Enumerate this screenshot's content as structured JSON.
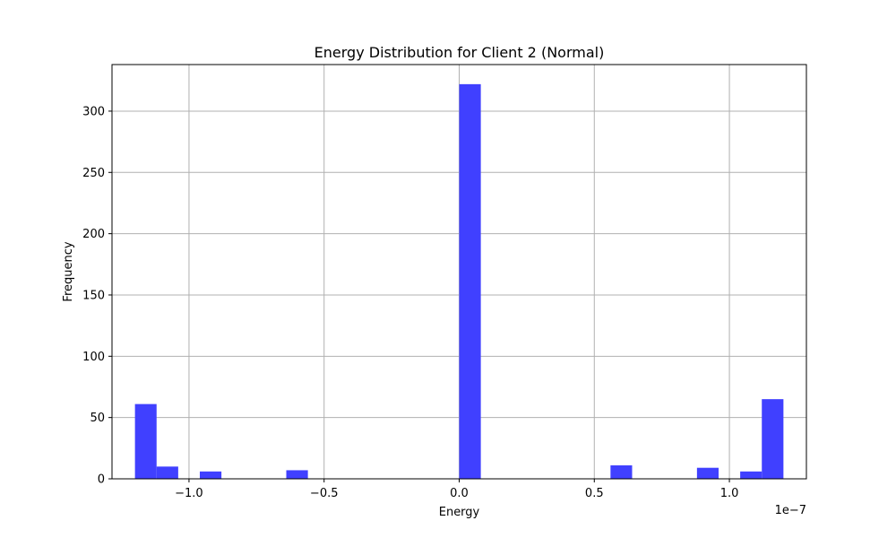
{
  "chart_data": {
    "type": "bar",
    "title": "Energy Distribution for Client 2 (Normal)",
    "xlabel": "Energy",
    "ylabel": "Frequency",
    "x_offset_label": "1e−7",
    "x_scale_factor": 1e-07,
    "xlim": [
      -1.285e-07,
      1.285e-07
    ],
    "ylim": [
      0,
      338
    ],
    "xticks": [
      {
        "value": -1e-07,
        "label": "−1.0"
      },
      {
        "value": -5e-08,
        "label": "−0.5"
      },
      {
        "value": 0.0,
        "label": "0.0"
      },
      {
        "value": 5e-08,
        "label": "0.5"
      },
      {
        "value": 1e-07,
        "label": "1.0"
      }
    ],
    "yticks": [
      {
        "value": 0,
        "label": "0"
      },
      {
        "value": 50,
        "label": "50"
      },
      {
        "value": 100,
        "label": "100"
      },
      {
        "value": 150,
        "label": "150"
      },
      {
        "value": 200,
        "label": "200"
      },
      {
        "value": 250,
        "label": "250"
      },
      {
        "value": 300,
        "label": "300"
      }
    ],
    "bin_start": -1.2e-07,
    "bin_width": 8e-09,
    "bins": [
      {
        "x": -1.16e-07,
        "value": 61
      },
      {
        "x": -1.08e-07,
        "value": 10
      },
      {
        "x": -1e-07,
        "value": 0
      },
      {
        "x": -9.2e-08,
        "value": 6
      },
      {
        "x": -8.4e-08,
        "value": 0
      },
      {
        "x": -7.6e-08,
        "value": 0
      },
      {
        "x": -6.8e-08,
        "value": 0
      },
      {
        "x": -6e-08,
        "value": 7
      },
      {
        "x": -5.2e-08,
        "value": 0
      },
      {
        "x": -4.4e-08,
        "value": 0
      },
      {
        "x": -3.6e-08,
        "value": 0
      },
      {
        "x": -2.8e-08,
        "value": 0
      },
      {
        "x": -2e-08,
        "value": 0
      },
      {
        "x": -1.2e-08,
        "value": 0
      },
      {
        "x": -4e-09,
        "value": 0
      },
      {
        "x": 4e-09,
        "value": 322
      },
      {
        "x": 1.2e-08,
        "value": 0
      },
      {
        "x": 2e-08,
        "value": 0
      },
      {
        "x": 2.8e-08,
        "value": 0
      },
      {
        "x": 3.6e-08,
        "value": 0
      },
      {
        "x": 4.4e-08,
        "value": 0
      },
      {
        "x": 5.2e-08,
        "value": 0
      },
      {
        "x": 6e-08,
        "value": 11
      },
      {
        "x": 6.8e-08,
        "value": 0
      },
      {
        "x": 7.6e-08,
        "value": 0
      },
      {
        "x": 8.4e-08,
        "value": 0
      },
      {
        "x": 9.2e-08,
        "value": 9
      },
      {
        "x": 1e-07,
        "value": 0
      },
      {
        "x": 1.08e-07,
        "value": 6
      },
      {
        "x": 1.16e-07,
        "value": 65
      }
    ],
    "bar_color": "#4040ff",
    "grid": true,
    "grid_color": "#b0b0b0"
  }
}
